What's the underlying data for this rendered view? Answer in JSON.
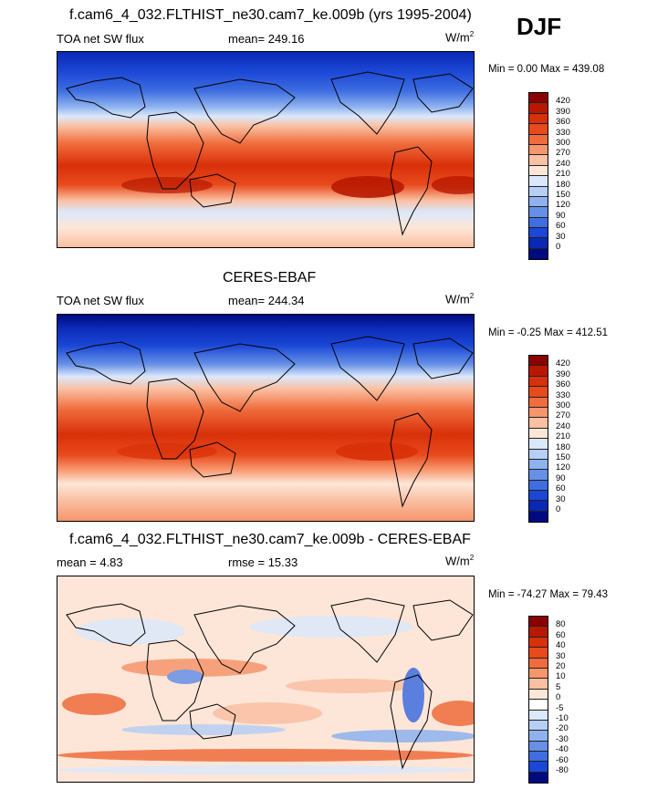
{
  "season": "DJF",
  "units_note": "",
  "panels": [
    {
      "title": "f.cam6_4_032.FLTHIST_ne30.cam7_ke.009b (yrs 1995-2004)",
      "left_label": "TOA net SW flux",
      "center_label": "mean= 249.16",
      "units_base": "W/m",
      "units_exp": "2",
      "minmax": "Min =   0.00 Max = 439.08",
      "levels": [
        "420",
        "390",
        "360",
        "330",
        "300",
        "270",
        "240",
        "210",
        "180",
        "150",
        "120",
        "90",
        "60",
        "30",
        "0"
      ],
      "colors": [
        "#8b0000",
        "#b81800",
        "#d8300a",
        "#e84a1c",
        "#f06c3c",
        "#f7956c",
        "#fac0a2",
        "#fde6d8",
        "#dbe8fb",
        "#b7cff6",
        "#8eb2ef",
        "#6690e6",
        "#3e6ee0",
        "#1b47d6",
        "#0a28b4",
        "#000a80"
      ]
    },
    {
      "title": "CERES-EBAF",
      "left_label": "TOA net SW flux",
      "center_label": "mean= 244.34",
      "units_base": "W/m",
      "units_exp": "2",
      "minmax": "Min =  -0.25 Max = 412.51",
      "levels": [
        "420",
        "390",
        "360",
        "330",
        "300",
        "270",
        "240",
        "210",
        "180",
        "150",
        "120",
        "90",
        "60",
        "30",
        "0"
      ],
      "colors": [
        "#8b0000",
        "#b81800",
        "#d8300a",
        "#e84a1c",
        "#f06c3c",
        "#f7956c",
        "#fac0a2",
        "#fde6d8",
        "#dbe8fb",
        "#b7cff6",
        "#8eb2ef",
        "#6690e6",
        "#3e6ee0",
        "#1b47d6",
        "#0a28b4",
        "#000a80"
      ]
    },
    {
      "title": "f.cam6_4_032.FLTHIST_ne30.cam7_ke.009b - CERES-EBAF",
      "left_label": "mean =   4.83",
      "center_label": "rmse =  15.33",
      "units_base": "W/m",
      "units_exp": "2",
      "minmax": "Min = -74.27 Max =  79.43",
      "levels": [
        "80",
        "60",
        "40",
        "30",
        "20",
        "10",
        "5",
        "0",
        "-5",
        "-10",
        "-20",
        "-30",
        "-40",
        "-60",
        "-80"
      ],
      "colors": [
        "#8b0000",
        "#b81800",
        "#d8300a",
        "#e84a1c",
        "#f06c3c",
        "#f7956c",
        "#fac0a2",
        "#fde6d8",
        "#ffffff",
        "#dbe8fb",
        "#b7cff6",
        "#8eb2ef",
        "#6690e6",
        "#3e6ee0",
        "#1b47d6",
        "#000a80"
      ]
    }
  ]
}
